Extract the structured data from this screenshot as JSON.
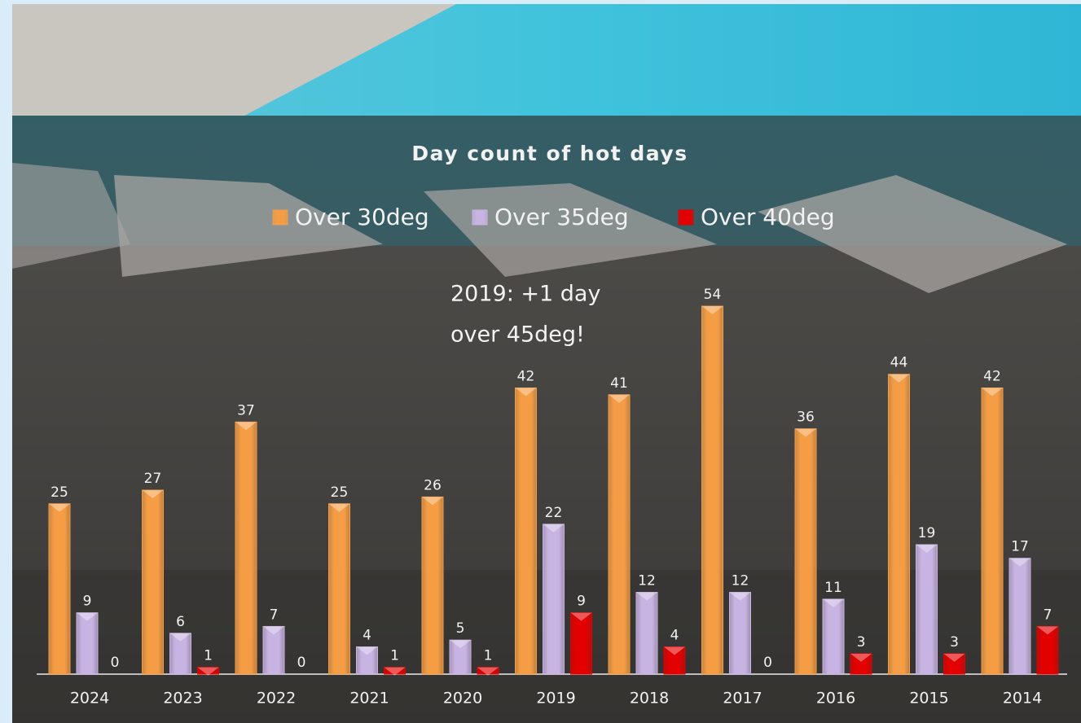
{
  "chart_data": {
    "type": "bar",
    "title": "Day count of hot days",
    "categories": [
      "2024",
      "2023",
      "2022",
      "2021",
      "2020",
      "2019",
      "2018",
      "2017",
      "2016",
      "2015",
      "2014"
    ],
    "series": [
      {
        "name": "Over 30deg",
        "color": "#f59d45",
        "values": [
          25,
          27,
          37,
          25,
          26,
          42,
          41,
          54,
          36,
          44,
          42
        ]
      },
      {
        "name": "Over 35deg",
        "color": "#c8b4e2",
        "values": [
          9,
          6,
          7,
          4,
          5,
          22,
          12,
          12,
          11,
          19,
          17
        ]
      },
      {
        "name": "Over 40deg",
        "color": "#e30000",
        "values": [
          0,
          1,
          0,
          1,
          1,
          9,
          4,
          0,
          3,
          3,
          7
        ]
      }
    ],
    "annotation": [
      "2019: +1 day",
      "over 45deg!"
    ],
    "legend": "top"
  }
}
